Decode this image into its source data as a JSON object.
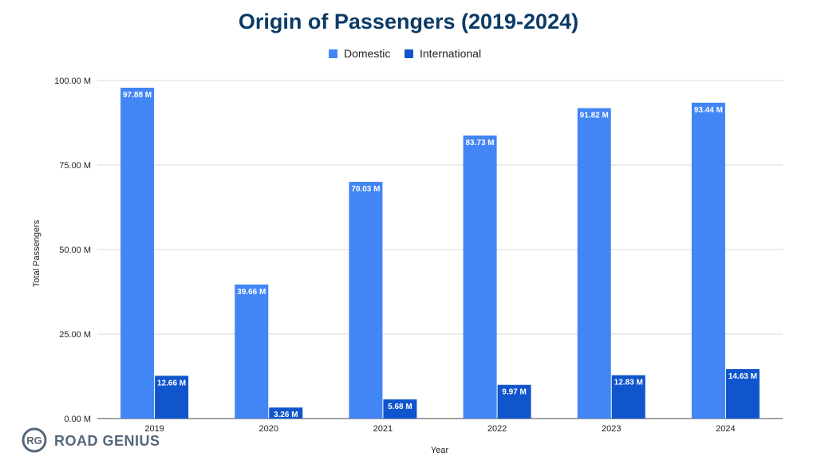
{
  "chart_data": {
    "type": "bar",
    "title": "Origin of Passengers (2019-2024)",
    "xlabel": "Year",
    "ylabel": "Total Passengers",
    "categories": [
      "2019",
      "2020",
      "2021",
      "2022",
      "2023",
      "2024"
    ],
    "series": [
      {
        "name": "Domestic",
        "color": "#4285f4",
        "values": [
          97.88,
          39.66,
          70.03,
          83.73,
          91.82,
          93.44
        ],
        "labels": [
          "97.88 M",
          "39.66 M",
          "70.03 M",
          "83.73 M",
          "91.82 M",
          "93.44 M"
        ]
      },
      {
        "name": "International",
        "color": "#1155cc",
        "values": [
          12.66,
          3.26,
          5.68,
          9.97,
          12.83,
          14.63
        ],
        "labels": [
          "12.66 M",
          "3.26 M",
          "5.68 M",
          "9.97 M",
          "12.83 M",
          "14.63 M"
        ]
      }
    ],
    "ylim": [
      0,
      100
    ],
    "yticks": [
      0,
      25,
      50,
      75,
      100
    ],
    "ytick_labels": [
      "0.00 M",
      "25.00 M",
      "50.00 M",
      "75.00 M",
      "100.00 M"
    ],
    "grid": true,
    "legend_position": "top-center",
    "title_color": "#0b3a66"
  },
  "branding": {
    "logo_monogram": "RG",
    "logo_text": "ROAD GENIUS",
    "color": "#56677a"
  }
}
